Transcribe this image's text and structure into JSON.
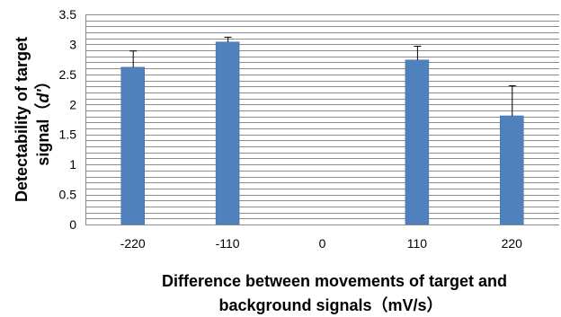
{
  "chart_data": {
    "type": "bar",
    "categories": [
      "-220",
      "-110",
      "0",
      "110",
      "220"
    ],
    "values": [
      2.62,
      3.04,
      null,
      2.74,
      1.81
    ],
    "errors": [
      0.27,
      0.08,
      null,
      0.23,
      0.5
    ],
    "ylim": [
      0,
      3.5
    ],
    "yticks": [
      "0",
      "0.5",
      "1",
      "1.5",
      "2",
      "2.5",
      "3",
      "3.5"
    ],
    "ylabel_line1": "Detectability of target",
    "ylabel_line2_prefix": "signal（",
    "ylabel_line2_italic": "d'",
    "ylabel_line2_suffix": "）",
    "xlabel_line1": "Difference between movements of target and",
    "xlabel_line2": "background signals（mV/s）",
    "grid": true,
    "colors": {
      "bar": "#4f81bd",
      "bar_edge": "#3a6aa3",
      "grid": "#8c8c8c",
      "axis": "#8c8c8c",
      "error": "#000000"
    }
  }
}
